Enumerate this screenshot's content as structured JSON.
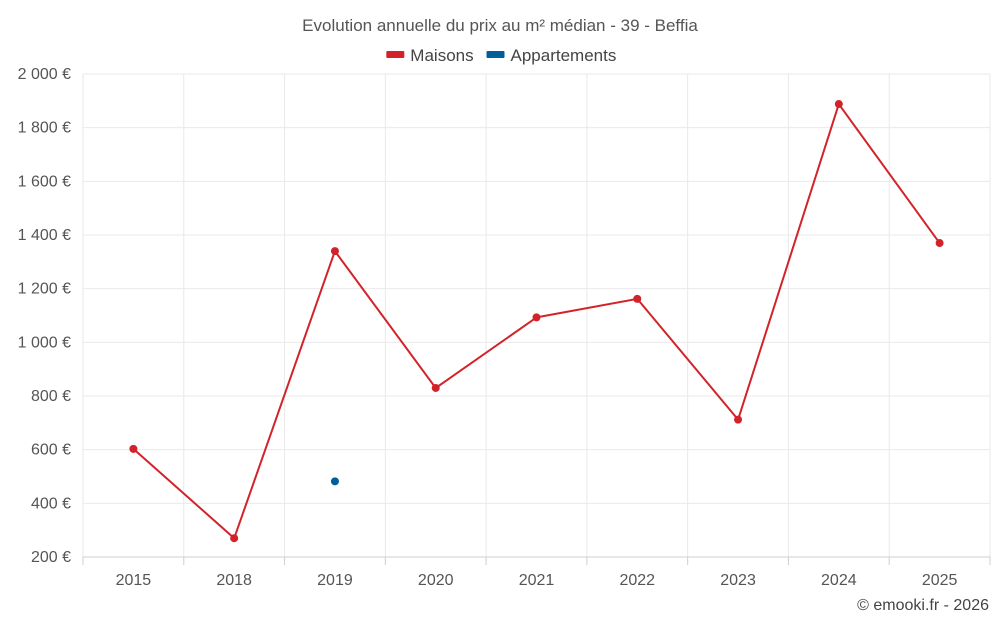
{
  "chart_data": {
    "type": "line",
    "title": "Evolution annuelle du prix au m² médian - 39 - Beffia",
    "categories": [
      "2015",
      "2018",
      "2019",
      "2020",
      "2021",
      "2022",
      "2023",
      "2024",
      "2025"
    ],
    "y_ticks": [
      "200 €",
      "400 €",
      "600 €",
      "800 €",
      "1 000 €",
      "1 200 €",
      "1 400 €",
      "1 600 €",
      "1 800 €",
      "2 000 €"
    ],
    "ylim": [
      200,
      2000
    ],
    "y_step": 200,
    "grid": true,
    "legend_position": "top-center",
    "series": [
      {
        "name": "Maisons",
        "color": "#d2232a",
        "values": [
          603,
          270,
          1340,
          830,
          1093,
          1162,
          712,
          1888,
          1370
        ]
      },
      {
        "name": "Appartements",
        "color": "#005f99",
        "values": [
          null,
          null,
          482,
          null,
          null,
          null,
          null,
          null,
          null
        ]
      }
    ]
  },
  "credit": "© emooki.fr - 2026"
}
